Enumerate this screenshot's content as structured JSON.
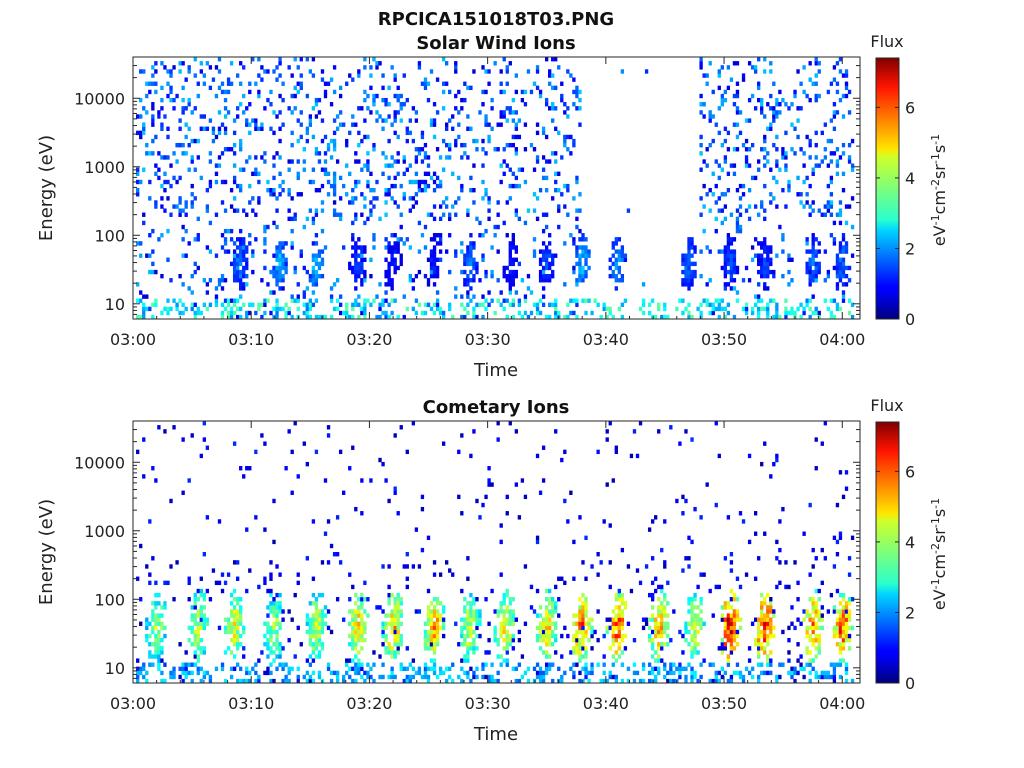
{
  "figure": {
    "title": "RPCICA151018T03.PNG"
  },
  "chart_data": [
    {
      "type": "heatmap",
      "title": "Solar Wind Ions",
      "xlabel": "Time",
      "ylabel": "Energy (eV)",
      "x_ticks": [
        "03:00",
        "03:10",
        "03:20",
        "03:30",
        "03:40",
        "03:50",
        "04:00"
      ],
      "x_tick_minutes": [
        0,
        10,
        20,
        30,
        40,
        50,
        60
      ],
      "xlim_minutes": [
        0,
        61.5
      ],
      "y_ticks": [
        "10",
        "100",
        "1000",
        "10000"
      ],
      "y_tick_values": [
        10,
        100,
        1000,
        10000
      ],
      "ylim": [
        6,
        40000
      ],
      "y_scale": "log",
      "colorbar": {
        "title": "Flux",
        "label": "eV-1cm-2sr-1s-1",
        "ticks": [
          "0",
          "2",
          "4",
          "6"
        ],
        "tick_values": [
          0,
          2,
          4,
          6
        ],
        "range": [
          0,
          7.4
        ]
      },
      "bursts": [
        {
          "t": 9.0,
          "flux": 1.5
        },
        {
          "t": 12.5,
          "flux": 2.0
        },
        {
          "t": 15.5,
          "flux": 2.0
        },
        {
          "t": 19.0,
          "flux": 1.2
        },
        {
          "t": 22.0,
          "flux": 1.0
        },
        {
          "t": 25.5,
          "flux": 1.0
        },
        {
          "t": 28.5,
          "flux": 1.5
        },
        {
          "t": 32.0,
          "flux": 1.0
        },
        {
          "t": 35.0,
          "flux": 1.3
        },
        {
          "t": 38.0,
          "flux": 2.0
        },
        {
          "t": 41.0,
          "flux": 1.8
        },
        {
          "t": 47.0,
          "flux": 1.5
        },
        {
          "t": 50.5,
          "flux": 1.3
        },
        {
          "t": 53.5,
          "flux": 1.2
        },
        {
          "t": 57.5,
          "flux": 1.5
        },
        {
          "t": 60.0,
          "flux": 1.5
        }
      ],
      "data_gap_minutes": [
        38,
        48
      ],
      "scatter_level_flux": 1.5,
      "low_energy_flux": 3.2
    },
    {
      "type": "heatmap",
      "title": "Cometary Ions",
      "xlabel": "Time",
      "ylabel": "Energy (eV)",
      "x_ticks": [
        "03:00",
        "03:10",
        "03:20",
        "03:30",
        "03:40",
        "03:50",
        "04:00"
      ],
      "x_tick_minutes": [
        0,
        10,
        20,
        30,
        40,
        50,
        60
      ],
      "xlim_minutes": [
        0,
        61.5
      ],
      "y_ticks": [
        "10",
        "100",
        "1000",
        "10000"
      ],
      "y_tick_values": [
        10,
        100,
        1000,
        10000
      ],
      "ylim": [
        6,
        40000
      ],
      "y_scale": "log",
      "colorbar": {
        "title": "Flux",
        "label": "eV-1cm-2sr-1s-1",
        "ticks": [
          "0",
          "2",
          "4",
          "6"
        ],
        "tick_values": [
          0,
          2,
          4,
          6
        ],
        "range": [
          0,
          7.4
        ]
      },
      "bursts": [
        {
          "t": 2.0,
          "flux": 3.5
        },
        {
          "t": 5.5,
          "flux": 3.8
        },
        {
          "t": 8.5,
          "flux": 4.0
        },
        {
          "t": 12.0,
          "flux": 3.5
        },
        {
          "t": 15.5,
          "flux": 3.8
        },
        {
          "t": 19.0,
          "flux": 4.3
        },
        {
          "t": 22.0,
          "flux": 4.5
        },
        {
          "t": 25.5,
          "flux": 4.6
        },
        {
          "t": 28.5,
          "flux": 3.8
        },
        {
          "t": 31.5,
          "flux": 4.2
        },
        {
          "t": 35.0,
          "flux": 4.3
        },
        {
          "t": 38.0,
          "flux": 5.0
        },
        {
          "t": 41.0,
          "flux": 5.2
        },
        {
          "t": 44.5,
          "flux": 4.5
        },
        {
          "t": 47.5,
          "flux": 4.0
        },
        {
          "t": 50.5,
          "flux": 5.8
        },
        {
          "t": 53.5,
          "flux": 5.6
        },
        {
          "t": 57.5,
          "flux": 5.0
        },
        {
          "t": 60.0,
          "flux": 5.2
        }
      ],
      "scatter_level_flux": 0.8,
      "low_energy_flux": 2.5
    }
  ]
}
